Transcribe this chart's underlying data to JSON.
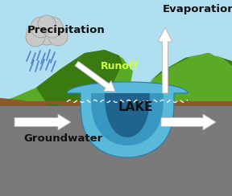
{
  "bg_sky_color": "#b0dff0",
  "underground_color": "#7a7a7a",
  "hill_left_color": "#5aaa28",
  "hill_dark_color": "#3a7a10",
  "soil_color": "#8B5A2B",
  "lake_light_color": "#5ab8d8",
  "lake_mid_color": "#2a8ab8",
  "lake_deep_color": "#1a5880",
  "cloud_color": "#c8c8c8",
  "cloud_edge": "#999999",
  "rain_color": "#5588cc",
  "arrow_white": "#ffffff",
  "arrow_edge": "#bbbbbb",
  "dashed_color": "#aaaaaa",
  "label_precipitation": "Precipitation",
  "label_evaporation": "Evaporation",
  "label_runoff": "Runoff",
  "label_lake": "LAKE",
  "label_groundwater": "Groundwater",
  "text_dark": "#111111",
  "text_white": "#ffffff",
  "text_runoff": "#ccff44",
  "figsize": [
    2.88,
    2.44
  ],
  "dpi": 100
}
